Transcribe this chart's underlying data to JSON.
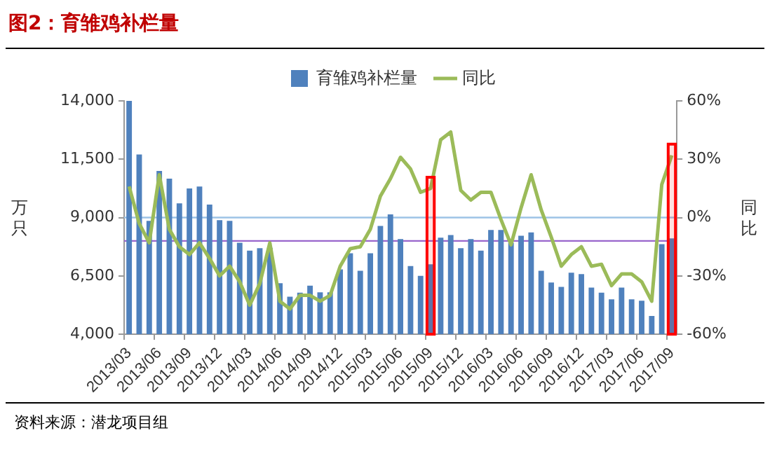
{
  "chart_data": {
    "type": "bar",
    "title": "图2：育雏鸡补栏量",
    "categories": [
      "2013/03",
      null,
      null,
      "2013/06",
      null,
      null,
      "2013/09",
      null,
      null,
      "2013/12",
      null,
      null,
      "2014/03",
      null,
      null,
      "2014/06",
      null,
      null,
      "2014/09",
      null,
      null,
      "2014/12",
      null,
      null,
      "2015/03",
      null,
      null,
      "2015/06",
      null,
      null,
      "2015/09",
      null,
      null,
      "2015/12",
      null,
      null,
      "2016/03",
      null,
      null,
      "2016/06",
      null,
      null,
      "2016/09",
      null,
      null,
      "2016/12",
      null,
      null,
      "2017/03",
      null,
      null,
      "2017/06",
      null,
      null,
      "2017/09"
    ],
    "series": [
      {
        "name": "育雏鸡补栏量",
        "color": "#4f81bd",
        "values": [
          14000,
          11700,
          8860,
          11000,
          10670,
          9610,
          10250,
          10330,
          9560,
          8890,
          8860,
          7920,
          7580,
          7690,
          7700,
          6190,
          5610,
          5780,
          6080,
          5800,
          5800,
          6780,
          7470,
          6720,
          7470,
          8640,
          9140,
          8080,
          6920,
          6500,
          7000,
          8140,
          8250,
          7690,
          8080,
          7580,
          8470,
          8470,
          7920,
          8220,
          8360,
          6720,
          6220,
          6030,
          6640,
          6580,
          6000,
          5780,
          5500,
          6000,
          5500,
          5440,
          4780,
          7860,
          8110
        ]
      },
      {
        "name": "同比",
        "type": "line",
        "axis": "y2",
        "color": "#9bbb59",
        "values": [
          16,
          -3,
          -13,
          22,
          -6,
          -15,
          -19,
          -13,
          -21,
          -30,
          -25,
          -33,
          -45,
          -34,
          -13,
          -43,
          -47,
          -40,
          -40,
          -43,
          -40,
          -25,
          -16,
          -15,
          -6,
          11,
          20,
          31,
          25,
          13,
          15,
          40,
          44,
          14,
          9,
          13,
          13,
          -1,
          -14,
          5,
          22,
          4,
          -10,
          -25,
          -19,
          -15,
          -25,
          -24,
          -35,
          -29,
          -29,
          -33,
          -43,
          17,
          32
        ]
      }
    ],
    "ylabel": "万只",
    "y2label": "同比",
    "ylim": [
      4000,
      14000
    ],
    "yticks": [
      {
        "value": 4000,
        "label": "4,000"
      },
      {
        "value": 6500,
        "label": "6,500"
      },
      {
        "value": 9000,
        "label": "9,000"
      },
      {
        "value": 11500,
        "label": "11,500"
      },
      {
        "value": 14000,
        "label": "14,000"
      }
    ],
    "y2lim": [
      -60,
      60
    ],
    "y2ticks": [
      {
        "value": -60,
        "label": "-60%"
      },
      {
        "value": -30,
        "label": "-30%"
      },
      {
        "value": 0,
        "label": "0%"
      },
      {
        "value": 30,
        "label": "30%"
      },
      {
        "value": 60,
        "label": "60%"
      }
    ],
    "ref_lines": [
      {
        "axis": "y2",
        "value": 0,
        "color": "#9dc3e6"
      },
      {
        "axis": "y",
        "value": 8000,
        "color": "#9966cc"
      }
    ],
    "bands": [
      {
        "axis": "x",
        "from": "2015/09",
        "to": "2015/09",
        "color": "#ff0000"
      },
      {
        "axis": "x",
        "from": "2017/09",
        "to": "2017/09",
        "color": "#ff0000"
      }
    ],
    "legend": "top",
    "grid": false,
    "annotations": [
      "资料来源：潜龙项目组"
    ]
  }
}
